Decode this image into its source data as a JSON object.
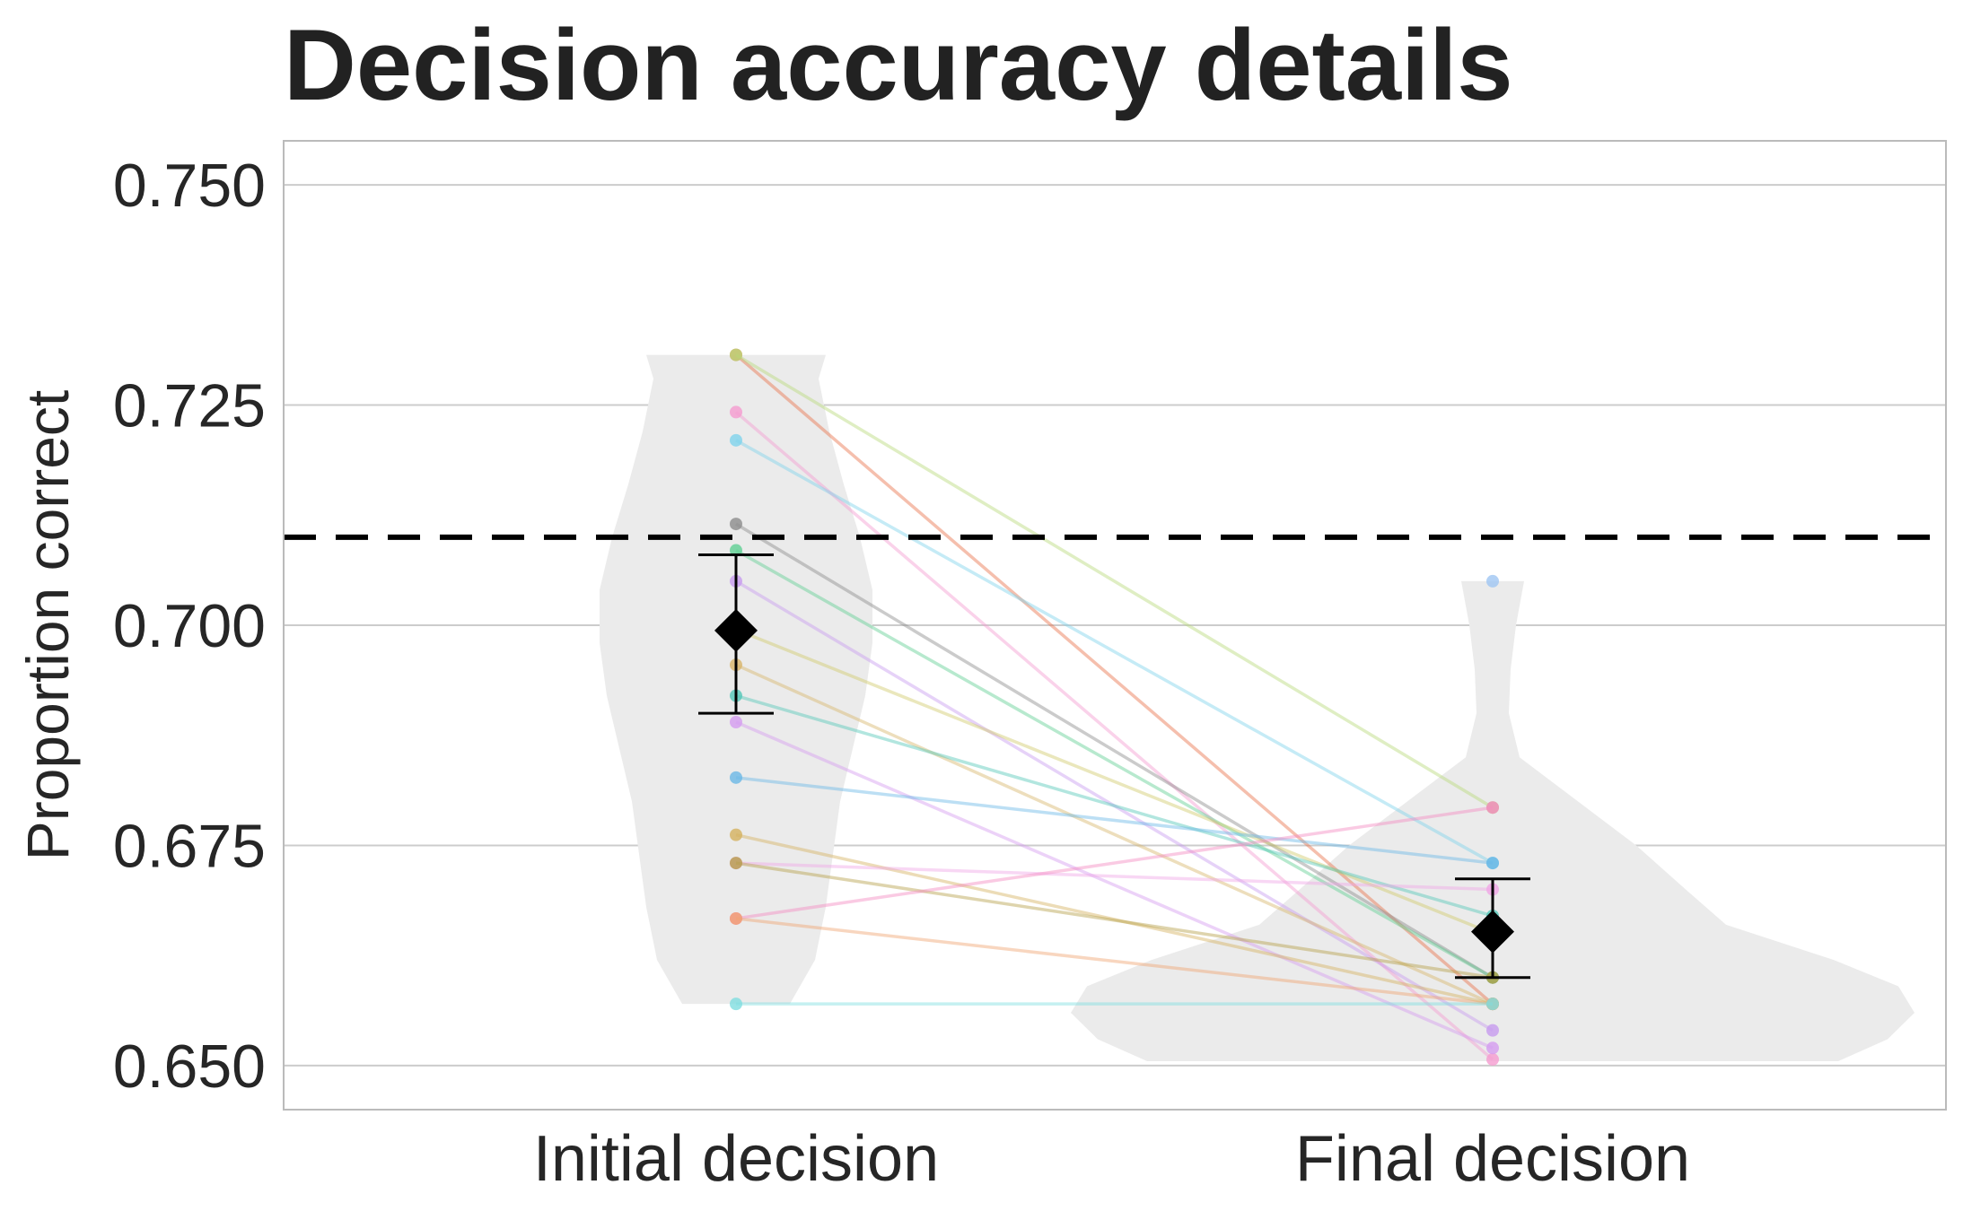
{
  "chart_data": {
    "type": "violin",
    "title": "Decision accuracy details",
    "xlabel": "",
    "ylabel": "Proportion correct",
    "categories": [
      "Initial decision",
      "Final decision"
    ],
    "ylim": [
      0.645,
      0.755
    ],
    "yticks": [
      0.65,
      0.675,
      0.7,
      0.725,
      0.75
    ],
    "ytick_labels": [
      "0.650",
      "0.675",
      "0.700",
      "0.725",
      "0.750"
    ],
    "grid": true,
    "reference_line": {
      "y": 0.71,
      "style": "dashed",
      "color": "#000000"
    },
    "means": [
      {
        "category": "Initial decision",
        "mean": 0.6994,
        "ci_low": 0.69,
        "ci_high": 0.708
      },
      {
        "category": "Final decision",
        "mean": 0.6652,
        "ci_low": 0.66,
        "ci_high": 0.6712
      }
    ],
    "violin_color": "#ebebeb",
    "pairs": [
      {
        "initial": 0.7307,
        "final": 0.657,
        "color": "#e8704a"
      },
      {
        "initial": 0.7307,
        "final": 0.6793,
        "color": "#b9d97a"
      },
      {
        "initial": 0.7242,
        "final": 0.6507,
        "color": "#f59bd0"
      },
      {
        "initial": 0.721,
        "final": 0.673,
        "color": "#7fd3ec"
      },
      {
        "initial": 0.7115,
        "final": 0.66,
        "color": "#8c8c8c"
      },
      {
        "initial": 0.7085,
        "final": 0.66,
        "color": "#5fcf93"
      },
      {
        "initial": 0.705,
        "final": 0.654,
        "color": "#c79bef"
      },
      {
        "initial": 0.6995,
        "final": 0.665,
        "color": "#d0c96a"
      },
      {
        "initial": 0.6955,
        "final": 0.657,
        "color": "#d8b56a"
      },
      {
        "initial": 0.692,
        "final": 0.667,
        "color": "#54c7b8"
      },
      {
        "initial": 0.689,
        "final": 0.652,
        "color": "#d59cf0"
      },
      {
        "initial": 0.6827,
        "final": 0.673,
        "color": "#6bb8e6"
      },
      {
        "initial": 0.6762,
        "final": 0.657,
        "color": "#d4b25f"
      },
      {
        "initial": 0.673,
        "final": 0.67,
        "color": "#f0a6e6"
      },
      {
        "initial": 0.673,
        "final": 0.66,
        "color": "#b5a04a"
      },
      {
        "initial": 0.6667,
        "final": 0.6793,
        "color": "#f58ac2"
      },
      {
        "initial": 0.6667,
        "final": 0.657,
        "color": "#f0a470"
      },
      {
        "initial": 0.657,
        "final": 0.657,
        "color": "#7fdde0"
      },
      {
        "initial": 0.6995,
        "final": 0.705,
        "color": "#9fc6f2",
        "final_only": true
      }
    ]
  }
}
